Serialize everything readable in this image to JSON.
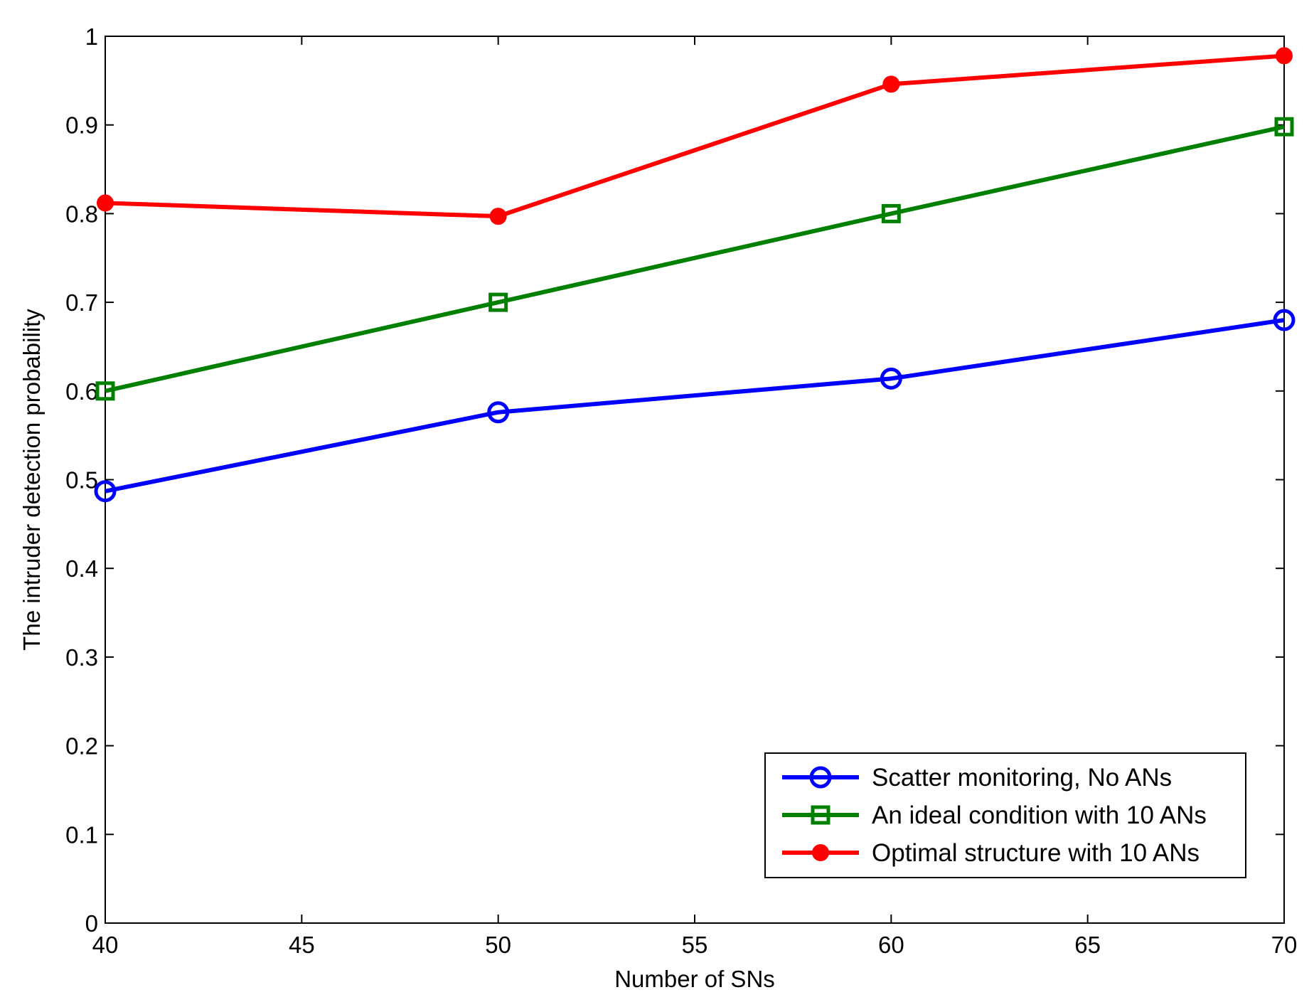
{
  "chart_data": {
    "type": "line",
    "title": "",
    "xlabel": "Number of SNs",
    "ylabel": "The intruder detection probability",
    "xlim": [
      40,
      70
    ],
    "ylim": [
      0,
      1
    ],
    "x_ticks": [
      "40",
      "45",
      "50",
      "55",
      "60",
      "65",
      "70"
    ],
    "y_ticks": [
      "0",
      "0.1",
      "0.2",
      "0.3",
      "0.4",
      "0.5",
      "0.6",
      "0.7",
      "0.8",
      "0.9",
      "1"
    ],
    "grid": false,
    "legend_position": "bottom-right",
    "x": [
      40,
      50,
      60,
      70
    ],
    "series": [
      {
        "name": "Scatter monitoring, No ANs",
        "values": [
          0.487,
          0.576,
          0.614,
          0.68
        ],
        "color": "#0000ff",
        "marker": "circle-open"
      },
      {
        "name": "An ideal condition with 10 ANs",
        "values": [
          0.6,
          0.7,
          0.8,
          0.898
        ],
        "color": "#008000",
        "marker": "square-open"
      },
      {
        "name": "Optimal structure with 10 ANs",
        "values": [
          0.812,
          0.797,
          0.946,
          0.978
        ],
        "color": "#ff0000",
        "marker": "circle-filled"
      }
    ]
  }
}
